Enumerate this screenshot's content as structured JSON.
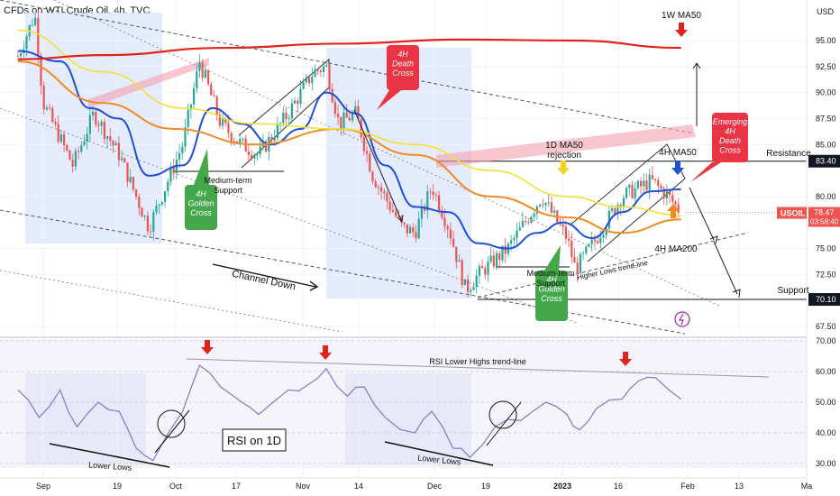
{
  "header": {
    "title": "CFDs on WTI Crude Oil, 4h, TVC"
  },
  "price_axis": {
    "currency": "USD",
    "ticks": [
      "95.00",
      "92.50",
      "90.00",
      "87.50",
      "85.00",
      "80.00",
      "75.00",
      "72.50",
      "67.50"
    ],
    "resistance_badge": "83.40",
    "support_badge": "70.10",
    "symbol_badge": "USOIL",
    "last_price": "78.47",
    "countdown": "03:58:40"
  },
  "rsi_axis": {
    "ticks": [
      "70.00",
      "60.00",
      "50.00",
      "40.00",
      "30.00"
    ]
  },
  "time_axis": {
    "ticks": [
      "Sep",
      "19",
      "Oct",
      "17",
      "Nov",
      "14",
      "Dec",
      "19",
      "2023",
      "16",
      "Feb",
      "13",
      "Ma"
    ]
  },
  "annotations": {
    "ma50_1w": "1W MA50",
    "death_cross_4h": [
      "4H",
      "Death",
      "Cross"
    ],
    "emerging_dc": [
      "Emerging",
      "4H",
      "Death",
      "Cross"
    ],
    "resistance": "Resistance",
    "support": "Support",
    "ma50_1d_rej": [
      "1D MA50",
      "rejection"
    ],
    "ma50_4h": "4H MA50",
    "ma200_4h": "4H MA200",
    "golden_cross_1": [
      "4H",
      "Golden",
      "Cross"
    ],
    "golden_cross_2": [
      "4H",
      "Golden",
      "Cross"
    ],
    "med_support_1": [
      "Medium-term",
      "Support"
    ],
    "med_support_2": [
      "Medium-term",
      "Support"
    ],
    "channel_down": "Channel Down",
    "higher_lows": "Higher Lows trend-line",
    "rsi_lower_highs": "RSI Lower Highs trend-line",
    "rsi_label": "RSI on 1D",
    "lower_lows_1": "Lower Lows",
    "lower_lows_2": "Lower Lows"
  },
  "colors": {
    "ma50_4h": "#1e4fd6",
    "ma200_4h": "#f08a24",
    "ma50_1d": "#f2e03a",
    "ma50_1w": "#e0241b",
    "rsi": "#8b7fc7",
    "up_candle": "#26a69a",
    "down_candle": "#ef5350",
    "highlight_box": "#dde6fb",
    "golden_box": "#44a84a",
    "death_box": "#ea3343"
  },
  "chart_data": [
    {
      "type": "candlestick",
      "timeframe": "4h",
      "price_range": [
        65.5,
        99
      ],
      "close_path": [
        {
          "x": "Aug 26",
          "y": 93.5
        },
        {
          "x": "Aug 30",
          "y": 97.5
        },
        {
          "x": "Sep 1",
          "y": 89
        },
        {
          "x": "Sep 8",
          "y": 83
        },
        {
          "x": "Sep 13",
          "y": 88
        },
        {
          "x": "Sep 19",
          "y": 84
        },
        {
          "x": "Sep 26",
          "y": 77
        },
        {
          "x": "Oct 3",
          "y": 85
        },
        {
          "x": "Oct 7",
          "y": 93
        },
        {
          "x": "Oct 12",
          "y": 87
        },
        {
          "x": "Oct 17",
          "y": 85
        },
        {
          "x": "Oct 21",
          "y": 84
        },
        {
          "x": "Oct 28",
          "y": 88
        },
        {
          "x": "Nov 4",
          "y": 92
        },
        {
          "x": "Nov 7",
          "y": 92.5
        },
        {
          "x": "Nov 10",
          "y": 87
        },
        {
          "x": "Nov 14",
          "y": 88
        },
        {
          "x": "Nov 18",
          "y": 82
        },
        {
          "x": "Nov 25",
          "y": 77
        },
        {
          "x": "Nov 28",
          "y": 76.5
        },
        {
          "x": "Dec 1",
          "y": 81
        },
        {
          "x": "Dec 5",
          "y": 77
        },
        {
          "x": "Dec 9",
          "y": 71
        },
        {
          "x": "Dec 12",
          "y": 72.5
        },
        {
          "x": "Dec 19",
          "y": 75
        },
        {
          "x": "Dec 27",
          "y": 80
        },
        {
          "x": "Jan 3",
          "y": 76
        },
        {
          "x": "Jan 5",
          "y": 73
        },
        {
          "x": "Jan 10",
          "y": 76
        },
        {
          "x": "Jan 16",
          "y": 80
        },
        {
          "x": "Jan 23",
          "y": 81.5
        },
        {
          "x": "Jan 27",
          "y": 80
        },
        {
          "x": "Jan 30",
          "y": 78.47
        }
      ],
      "moving_averages": [
        {
          "name": "4H MA50",
          "points": [
            {
              "x": "Aug 26",
              "y": 94
            },
            {
              "x": "Sep 5",
              "y": 93
            },
            {
              "x": "Sep 12",
              "y": 88.5
            },
            {
              "x": "Sep 19",
              "y": 87.5
            },
            {
              "x": "Sep 26",
              "y": 82
            },
            {
              "x": "Oct 3",
              "y": 83
            },
            {
              "x": "Oct 10",
              "y": 88.5
            },
            {
              "x": "Oct 17",
              "y": 87
            },
            {
              "x": "Oct 24",
              "y": 85
            },
            {
              "x": "Oct 31",
              "y": 86.5
            },
            {
              "x": "Nov 7",
              "y": 90
            },
            {
              "x": "Nov 14",
              "y": 88
            },
            {
              "x": "Nov 21",
              "y": 83
            },
            {
              "x": "Nov 28",
              "y": 79
            },
            {
              "x": "Dec 5",
              "y": 78.5
            },
            {
              "x": "Dec 12",
              "y": 75.5
            },
            {
              "x": "Dec 19",
              "y": 75
            },
            {
              "x": "Dec 26",
              "y": 76.5
            },
            {
              "x": "Jan 2",
              "y": 77.5
            },
            {
              "x": "Jan 9",
              "y": 76
            },
            {
              "x": "Jan 16",
              "y": 78.5
            },
            {
              "x": "Jan 23",
              "y": 80.5
            },
            {
              "x": "Jan 30",
              "y": 80.7
            }
          ]
        },
        {
          "name": "4H MA200",
          "points": [
            {
              "x": "Aug 26",
              "y": 93
            },
            {
              "x": "Sep 15",
              "y": 89
            },
            {
              "x": "Oct 1",
              "y": 86.5
            },
            {
              "x": "Oct 20",
              "y": 85
            },
            {
              "x": "Nov 10",
              "y": 86.5
            },
            {
              "x": "Nov 28",
              "y": 84
            },
            {
              "x": "Dec 15",
              "y": 80
            },
            {
              "x": "Jan 3",
              "y": 78
            },
            {
              "x": "Jan 16",
              "y": 76.5
            },
            {
              "x": "Jan 30",
              "y": 77.8
            }
          ]
        },
        {
          "name": "1D MA50",
          "points": [
            {
              "x": "Aug 26",
              "y": 96
            },
            {
              "x": "Sep 15",
              "y": 92
            },
            {
              "x": "Oct 3",
              "y": 88.5
            },
            {
              "x": "Oct 20",
              "y": 87
            },
            {
              "x": "Nov 10",
              "y": 86.5
            },
            {
              "x": "Nov 28",
              "y": 85
            },
            {
              "x": "Dec 15",
              "y": 82.5
            },
            {
              "x": "Jan 3",
              "y": 80
            },
            {
              "x": "Jan 16",
              "y": 79
            },
            {
              "x": "Jan 30",
              "y": 78.2
            }
          ]
        },
        {
          "name": "1W MA50",
          "points": [
            {
              "x": "Aug 26",
              "y": 93.2
            },
            {
              "x": "Sep 15",
              "y": 93.6
            },
            {
              "x": "Oct 13",
              "y": 94.3
            },
            {
              "x": "Nov 10",
              "y": 94.7
            },
            {
              "x": "Dec 8",
              "y": 95.1
            },
            {
              "x": "Jan 5",
              "y": 95.0
            },
            {
              "x": "Jan 30",
              "y": 94.3
            }
          ]
        }
      ],
      "levels": [
        {
          "name": "Resistance",
          "y": 83.4
        },
        {
          "name": "Support",
          "y": 70.1
        }
      ]
    },
    {
      "type": "line",
      "title": "RSI on 1D",
      "ylim": [
        28,
        70
      ],
      "series": [
        {
          "name": "RSI",
          "points": [
            {
              "x": "Aug 26",
              "y": 54
            },
            {
              "x": "Aug 31",
              "y": 45
            },
            {
              "x": "Sep 5",
              "y": 54
            },
            {
              "x": "Sep 9",
              "y": 42
            },
            {
              "x": "Sep 14",
              "y": 50
            },
            {
              "x": "Sep 19",
              "y": 47
            },
            {
              "x": "Sep 23",
              "y": 35
            },
            {
              "x": "Sep 27",
              "y": 31
            },
            {
              "x": "Oct 3",
              "y": 47
            },
            {
              "x": "Oct 7",
              "y": 62
            },
            {
              "x": "Oct 12",
              "y": 55
            },
            {
              "x": "Oct 17",
              "y": 50
            },
            {
              "x": "Oct 21",
              "y": 46
            },
            {
              "x": "Oct 28",
              "y": 54
            },
            {
              "x": "Nov 3",
              "y": 56
            },
            {
              "x": "Nov 7",
              "y": 61
            },
            {
              "x": "Nov 12",
              "y": 52
            },
            {
              "x": "Nov 16",
              "y": 55
            },
            {
              "x": "Nov 21",
              "y": 45
            },
            {
              "x": "Nov 28",
              "y": 40
            },
            {
              "x": "Dec 1",
              "y": 47
            },
            {
              "x": "Dec 6",
              "y": 35
            },
            {
              "x": "Dec 10",
              "y": 32
            },
            {
              "x": "Dec 16",
              "y": 42
            },
            {
              "x": "Dec 22",
              "y": 44
            },
            {
              "x": "Dec 28",
              "y": 50
            },
            {
              "x": "Jan 3",
              "y": 46
            },
            {
              "x": "Jan 6",
              "y": 41
            },
            {
              "x": "Jan 10",
              "y": 48
            },
            {
              "x": "Jan 16",
              "y": 51
            },
            {
              "x": "Jan 20",
              "y": 57
            },
            {
              "x": "Jan 24",
              "y": 58
            },
            {
              "x": "Jan 30",
              "y": 51
            }
          ]
        }
      ]
    }
  ]
}
